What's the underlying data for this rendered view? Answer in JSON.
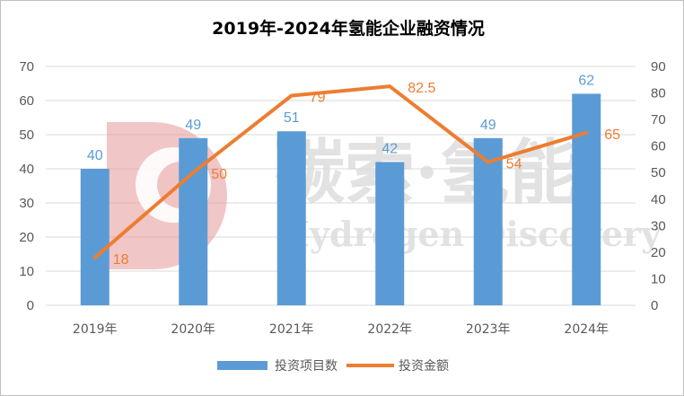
{
  "chart_data": {
    "type": "bar",
    "title": "2019年-2024年氢能企业融资情况",
    "categories": [
      "2019年",
      "2020年",
      "2021年",
      "2022年",
      "2023年",
      "2024年"
    ],
    "series": [
      {
        "name": "投资项目数",
        "type": "bar",
        "axis": "left",
        "values": [
          40,
          49,
          51,
          42,
          49,
          62
        ],
        "color": "#5b9bd5"
      },
      {
        "name": "投资金额",
        "type": "line",
        "axis": "right",
        "values": [
          18,
          50,
          79,
          82.5,
          54,
          65
        ],
        "color": "#ed7d31"
      }
    ],
    "y_left": {
      "range": [
        0,
        70
      ],
      "ticks": [
        0,
        10,
        20,
        30,
        40,
        50,
        60,
        70
      ]
    },
    "y_right": {
      "range": [
        0,
        90
      ],
      "ticks": [
        0,
        10,
        20,
        30,
        40,
        50,
        60,
        70,
        80,
        90
      ]
    },
    "grid": true,
    "legend_position": "bottom"
  },
  "watermark": {
    "cn": "碳索·氢能",
    "en": "Hydrogen Discovery",
    "logo_color": "#e8a0a0"
  }
}
